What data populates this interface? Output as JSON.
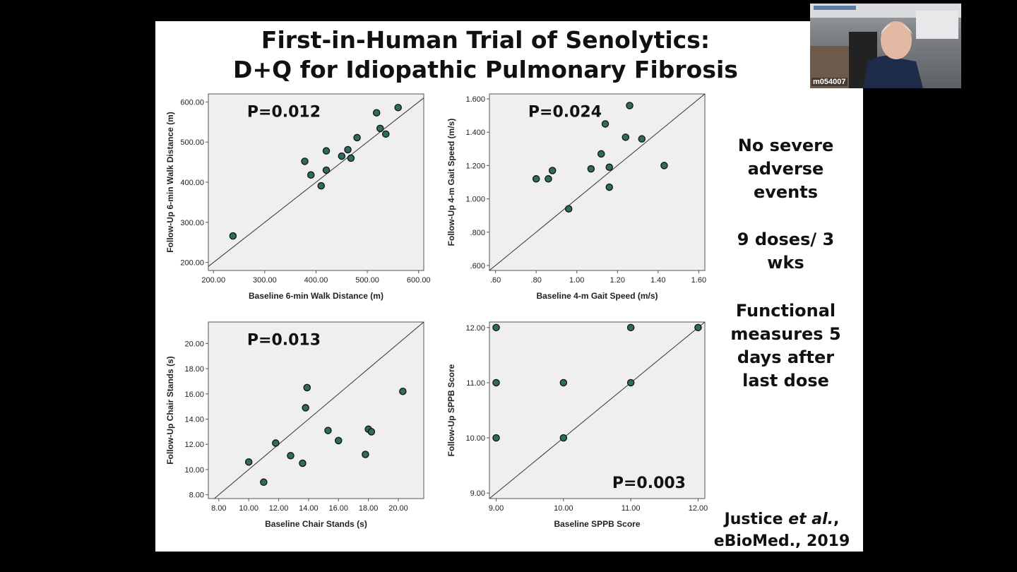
{
  "slide": {
    "title_line1": "First-in-Human Trial of Senolytics:",
    "title_line2": "D+Q for Idiopathic Pulmonary Fibrosis",
    "side_notes": [
      "No severe adverse events",
      "9 doses/ 3 wks",
      "Functional measures 5 days after last dose"
    ],
    "citation_line1": "Justice ",
    "citation_italic": "et al.",
    "citation_suffix": ",",
    "citation_line2": "eBioMed., 2019"
  },
  "webcam": {
    "label": "m054007"
  },
  "colors": {
    "point_fill": "#2f6b5e",
    "plot_bg": "#efefef",
    "slide_bg": "#ffffff",
    "page_bg": "#000000"
  },
  "chart_data": [
    {
      "type": "scatter",
      "annotation": "P=0.012",
      "xlabel": "Baseline 6-min Walk Distance (m)",
      "ylabel": "Follow-Up 6-min Walk Distance (m)",
      "xlim": [
        190,
        610
      ],
      "ylim": [
        180,
        620
      ],
      "xticks": [
        "200.00",
        "300.00",
        "400.00",
        "500.00",
        "600.00"
      ],
      "yticks": [
        "200.00",
        "300.00",
        "400.00",
        "500.00",
        "600.00"
      ],
      "reference_line": "identity",
      "points": [
        {
          "x": 238,
          "y": 266
        },
        {
          "x": 378,
          "y": 452
        },
        {
          "x": 390,
          "y": 418
        },
        {
          "x": 410,
          "y": 391
        },
        {
          "x": 420,
          "y": 478
        },
        {
          "x": 420,
          "y": 430
        },
        {
          "x": 450,
          "y": 465
        },
        {
          "x": 462,
          "y": 481
        },
        {
          "x": 468,
          "y": 460
        },
        {
          "x": 480,
          "y": 511
        },
        {
          "x": 518,
          "y": 573
        },
        {
          "x": 525,
          "y": 534
        },
        {
          "x": 536,
          "y": 520
        },
        {
          "x": 560,
          "y": 586
        }
      ]
    },
    {
      "type": "scatter",
      "annotation": "P=0.024",
      "xlabel": "Baseline 4-m Gait Speed (m/s)",
      "ylabel": "Follow-Up 4-m Gait Speed (m/s)",
      "xlim": [
        0.57,
        1.63
      ],
      "ylim": [
        0.57,
        1.63
      ],
      "xticks": [
        ".60",
        ".80",
        "1.00",
        "1.20",
        "1.40",
        "1.60"
      ],
      "yticks": [
        ".600",
        ".800",
        "1.000",
        "1.200",
        "1.400",
        "1.600"
      ],
      "reference_line": "identity",
      "points": [
        {
          "x": 0.8,
          "y": 1.12
        },
        {
          "x": 0.86,
          "y": 1.12
        },
        {
          "x": 0.88,
          "y": 1.17
        },
        {
          "x": 0.96,
          "y": 0.94
        },
        {
          "x": 1.07,
          "y": 1.18
        },
        {
          "x": 1.12,
          "y": 1.27
        },
        {
          "x": 1.14,
          "y": 1.45
        },
        {
          "x": 1.16,
          "y": 1.19
        },
        {
          "x": 1.16,
          "y": 1.07
        },
        {
          "x": 1.24,
          "y": 1.37
        },
        {
          "x": 1.26,
          "y": 1.56
        },
        {
          "x": 1.32,
          "y": 1.36
        },
        {
          "x": 1.43,
          "y": 1.2
        }
      ]
    },
    {
      "type": "scatter",
      "annotation": "P=0.013",
      "xlabel": "Baseline Chair Stands (s)",
      "ylabel": "Follow-Up Chair Stands (s)",
      "xlim": [
        7.3,
        21.7
      ],
      "ylim": [
        7.7,
        21.7
      ],
      "xticks": [
        "8.00",
        "10.00",
        "12.00",
        "14.00",
        "16.00",
        "18.00",
        "20.00"
      ],
      "yticks": [
        "8.00",
        "10.00",
        "12.00",
        "14.00",
        "16.00",
        "18.00",
        "20.00"
      ],
      "reference_line": "identity",
      "points": [
        {
          "x": 10.0,
          "y": 10.6
        },
        {
          "x": 11.0,
          "y": 9.0
        },
        {
          "x": 11.8,
          "y": 12.1
        },
        {
          "x": 12.8,
          "y": 11.1
        },
        {
          "x": 13.6,
          "y": 10.5
        },
        {
          "x": 13.8,
          "y": 14.9
        },
        {
          "x": 13.9,
          "y": 16.5
        },
        {
          "x": 15.3,
          "y": 13.1
        },
        {
          "x": 16.0,
          "y": 12.3
        },
        {
          "x": 17.8,
          "y": 11.2
        },
        {
          "x": 18.0,
          "y": 13.2
        },
        {
          "x": 18.2,
          "y": 13.0
        },
        {
          "x": 20.3,
          "y": 16.2
        }
      ]
    },
    {
      "type": "scatter",
      "annotation": "P=0.003",
      "xlabel": "Baseline SPPB Score",
      "ylabel": "Follow-Up SPPB Score",
      "xlim": [
        8.9,
        12.1
      ],
      "ylim": [
        8.9,
        12.1
      ],
      "xticks": [
        "9.00",
        "10.00",
        "11.00",
        "12.00"
      ],
      "yticks": [
        "9.00",
        "10.00",
        "11.00",
        "12.00"
      ],
      "reference_line": "identity",
      "points": [
        {
          "x": 9,
          "y": 12
        },
        {
          "x": 9,
          "y": 11
        },
        {
          "x": 9,
          "y": 10
        },
        {
          "x": 10,
          "y": 11
        },
        {
          "x": 10,
          "y": 10
        },
        {
          "x": 11,
          "y": 12
        },
        {
          "x": 11,
          "y": 11
        },
        {
          "x": 12,
          "y": 12
        }
      ]
    }
  ]
}
